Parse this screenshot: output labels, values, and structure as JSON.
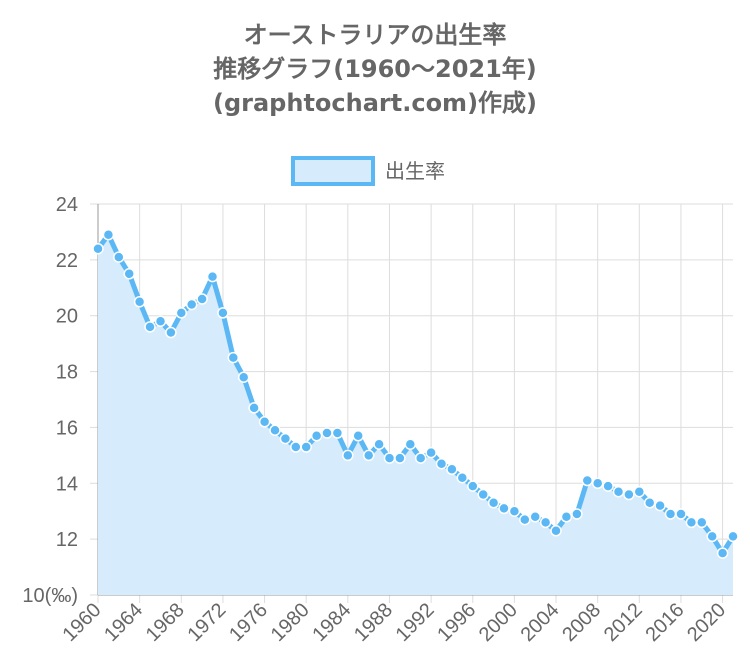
{
  "chart_data": {
    "type": "area",
    "title_lines": [
      "オーストラリアの出生率",
      "推移グラフ(1960〜2021年)",
      "(graphtochart.com)作成)"
    ],
    "legend": {
      "label": "出生率",
      "position": "top"
    },
    "y_unit": "(‰)",
    "ylim": [
      10,
      24
    ],
    "yticks": [
      10,
      12,
      14,
      16,
      18,
      20,
      22,
      24
    ],
    "xlim": [
      1960,
      2021
    ],
    "xticks": [
      1960,
      1964,
      1968,
      1972,
      1976,
      1980,
      1984,
      1988,
      1992,
      1996,
      2000,
      2004,
      2008,
      2012,
      2016,
      2020
    ],
    "grid": true,
    "colors": {
      "line": "#5bb8f5",
      "fill": "#d6ebfb",
      "grid": "#dddddd",
      "text": "#666666"
    },
    "series": [
      {
        "name": "出生率",
        "x": [
          1960,
          1961,
          1962,
          1963,
          1964,
          1965,
          1966,
          1967,
          1968,
          1969,
          1970,
          1971,
          1972,
          1973,
          1974,
          1975,
          1976,
          1977,
          1978,
          1979,
          1980,
          1981,
          1982,
          1983,
          1984,
          1985,
          1986,
          1987,
          1988,
          1989,
          1990,
          1991,
          1992,
          1993,
          1994,
          1995,
          1996,
          1997,
          1998,
          1999,
          2000,
          2001,
          2002,
          2003,
          2004,
          2005,
          2006,
          2007,
          2008,
          2009,
          2010,
          2011,
          2012,
          2013,
          2014,
          2015,
          2016,
          2017,
          2018,
          2019,
          2020,
          2021
        ],
        "values": [
          22.4,
          22.9,
          22.1,
          21.5,
          20.5,
          19.6,
          19.8,
          19.4,
          20.1,
          20.4,
          20.6,
          21.4,
          20.1,
          18.5,
          17.8,
          16.7,
          16.2,
          15.9,
          15.6,
          15.3,
          15.3,
          15.7,
          15.8,
          15.8,
          15.0,
          15.7,
          15.0,
          15.4,
          14.9,
          14.9,
          15.4,
          14.9,
          15.1,
          14.7,
          14.5,
          14.2,
          13.9,
          13.6,
          13.3,
          13.1,
          13.0,
          12.7,
          12.8,
          12.6,
          12.3,
          12.8,
          12.9,
          14.1,
          14.0,
          13.9,
          13.7,
          13.6,
          13.7,
          13.3,
          13.2,
          12.9,
          12.9,
          12.6,
          12.6,
          12.1,
          11.5,
          12.1
        ]
      }
    ]
  }
}
